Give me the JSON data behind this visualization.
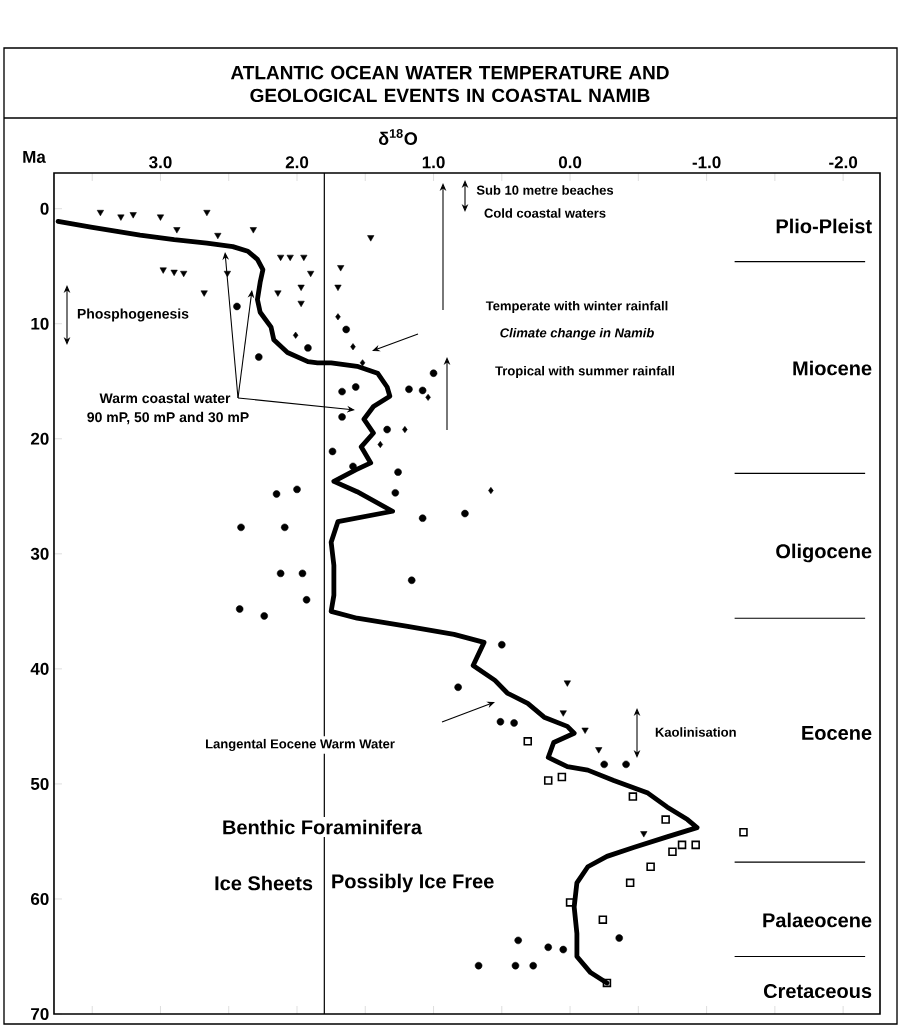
{
  "chart_data": {
    "type": "scatter",
    "title": "ATLANTIC OCEAN WATER TEMPERATURE AND GEOLOGICAL EVENTS IN COASTAL NAMIB",
    "xlabel": "δ$^{18}$O",
    "ylabel": "Ma",
    "xlim": [
      3.78,
      -2.27
    ],
    "ylim": [
      70,
      -3.1
    ],
    "xticks": [
      {
        "value": 3.5,
        "label": null
      },
      {
        "value": 3.0,
        "label": "3.0"
      },
      {
        "value": 2.5,
        "label": null
      },
      {
        "value": 2.0,
        "label": "2.0"
      },
      {
        "value": 1.5,
        "label": null
      },
      {
        "value": 1.0,
        "label": "1.0"
      },
      {
        "value": 0.5,
        "label": null
      },
      {
        "value": 0.0,
        "label": "0.0"
      },
      {
        "value": -0.5,
        "label": null
      },
      {
        "value": -1.0,
        "label": "-1.0"
      },
      {
        "value": -1.5,
        "label": null
      },
      {
        "value": -2.0,
        "label": "-2.0"
      }
    ],
    "yticks": [
      0,
      10,
      20,
      30,
      40,
      50,
      60,
      70
    ],
    "series": [
      {
        "type": "line",
        "color": "#000000",
        "marker": "none",
        "line_style": "solid",
        "x": [
          3.75,
          3.51,
          3.15,
          2.9,
          2.66,
          2.47,
          2.36,
          2.29,
          2.25,
          2.27,
          2.29,
          2.27,
          2.19,
          2.17,
          2.07,
          1.92,
          1.85,
          1.75,
          1.56,
          1.41,
          1.34,
          1.32,
          1.44,
          1.51,
          1.44,
          1.53,
          1.46,
          1.57,
          1.73,
          1.56,
          1.3,
          1.7,
          1.75,
          1.73,
          1.73,
          1.75,
          1.56,
          1.19,
          0.85,
          0.63,
          0.71,
          0.55,
          0.46,
          0.31,
          0.19,
          0.02,
          -0.03,
          0.12,
          0.16,
          0.02,
          -0.13,
          -0.32,
          -0.57,
          -0.71,
          -0.86,
          -0.93,
          -0.71,
          -0.47,
          -0.27,
          -0.13,
          -0.05,
          -0.03,
          -0.05,
          -0.05,
          -0.15,
          -0.27
        ],
        "values": [
          1.1,
          1.6,
          2.3,
          2.7,
          3.0,
          3.3,
          3.7,
          4.4,
          5.3,
          6.4,
          7.9,
          9.0,
          10.3,
          11.4,
          12.5,
          13.3,
          13.4,
          13.4,
          13.7,
          14.3,
          15.5,
          16.3,
          17.2,
          18.3,
          19.5,
          20.7,
          22.1,
          22.7,
          23.7,
          24.6,
          26.3,
          27.2,
          29.0,
          31.0,
          33.6,
          35.0,
          35.6,
          36.3,
          37.0,
          37.7,
          39.7,
          41.0,
          42.1,
          43.0,
          44.2,
          45.0,
          45.6,
          46.4,
          47.7,
          48.5,
          48.8,
          49.7,
          50.8,
          52.0,
          53.1,
          53.8,
          54.6,
          55.5,
          56.3,
          57.2,
          58.6,
          60.7,
          63.0,
          65.0,
          66.4,
          67.3
        ]
      },
      {
        "color": "#000000",
        "marker": "triangle",
        "x": [
          3.44,
          3.29,
          3.2,
          3.0,
          2.88,
          2.66,
          2.58,
          2.32,
          1.46,
          2.98,
          2.9,
          2.83,
          2.68,
          2.12,
          2.05,
          1.95,
          1.97,
          1.97,
          2.14,
          1.68,
          1.7,
          1.9,
          2.51,
          0.02,
          0.05,
          -0.11,
          -0.21,
          -0.54
        ],
        "values": [
          0.3,
          0.7,
          0.5,
          0.7,
          1.8,
          0.3,
          2.3,
          1.8,
          2.5,
          5.3,
          5.5,
          5.6,
          7.3,
          4.2,
          4.2,
          4.2,
          6.8,
          8.2,
          7.3,
          5.1,
          6.8,
          5.6,
          5.6,
          41.2,
          43.8,
          45.3,
          47.0,
          54.3
        ]
      },
      {
        "color": "#000000",
        "marker": "circle",
        "x": [
          1.92,
          2.28,
          1.64,
          1.0,
          1.67,
          1.57,
          1.18,
          1.08,
          1.67,
          1.34,
          1.74,
          1.59,
          1.26,
          2.44,
          2.41,
          2.42,
          2.15,
          2.0,
          2.09,
          2.24,
          2.12,
          1.96,
          1.93,
          0.77,
          0.5,
          1.16,
          1.08,
          1.28,
          0.82,
          0.51,
          0.41,
          0.38,
          0.16,
          0.05,
          0.67,
          0.4,
          0.27,
          -0.36,
          -0.41,
          -0.25
        ],
        "values": [
          12.1,
          12.9,
          10.5,
          14.3,
          15.9,
          15.5,
          15.7,
          15.8,
          18.1,
          19.2,
          21.1,
          22.4,
          22.9,
          8.5,
          27.7,
          34.8,
          24.8,
          24.4,
          27.7,
          35.4,
          31.7,
          31.7,
          34.0,
          26.5,
          37.9,
          32.3,
          26.9,
          24.7,
          41.6,
          44.6,
          44.7,
          63.6,
          64.2,
          64.4,
          65.8,
          65.8,
          65.8,
          63.4,
          48.3,
          48.3
        ]
      },
      {
        "color": "#000000",
        "marker": "square",
        "x": [
          0.31,
          0.16,
          0.06,
          -0.46,
          -0.7,
          -1.27,
          -0.82,
          -0.92,
          -0.75,
          -0.59,
          -0.44,
          0.0,
          -0.24,
          -0.27
        ],
        "values": [
          46.3,
          49.7,
          49.4,
          51.1,
          53.1,
          54.2,
          55.3,
          55.3,
          55.9,
          57.2,
          58.6,
          60.3,
          61.8,
          67.3
        ]
      },
      {
        "color": "#000000",
        "marker": "diamond",
        "x": [
          1.7,
          1.59,
          1.52,
          2.01,
          1.21,
          1.39,
          1.04,
          0.58
        ],
        "values": [
          9.4,
          12.0,
          13.4,
          11.0,
          19.2,
          20.5,
          16.4,
          24.5
        ]
      }
    ],
    "ref_lines": [
      {
        "axis": "x",
        "value": 1.8,
        "color": "#000000"
      },
      {
        "axis": "y",
        "value": 4.6,
        "color": "#000000"
      },
      {
        "axis": "y",
        "value": 23.0,
        "color": "#000000"
      },
      {
        "axis": "y",
        "value": 35.6,
        "color": "#000000"
      },
      {
        "axis": "y",
        "value": 56.8,
        "color": "#000000"
      },
      {
        "axis": "y",
        "value": 65.0,
        "color": "#000000"
      }
    ],
    "annotations": [
      "Sub 10 metre beaches",
      "Cold coastal waters",
      "Temperate with winter rainfall",
      "Climate change in Namib",
      "Tropical with summer rainfall",
      "Phosphogenesis",
      "Warm coastal water",
      "90 mP, 50 mP and 30 mP",
      "Langental Eocene Warm Water",
      "Kaolinisation",
      "Benthic Foraminifera",
      "Ice Sheets",
      "Possibly Ice Free",
      "Plio-Pleist",
      "Miocene",
      "Oligocene",
      "Eocene",
      "Palaeocene",
      "Cretaceous"
    ]
  }
}
